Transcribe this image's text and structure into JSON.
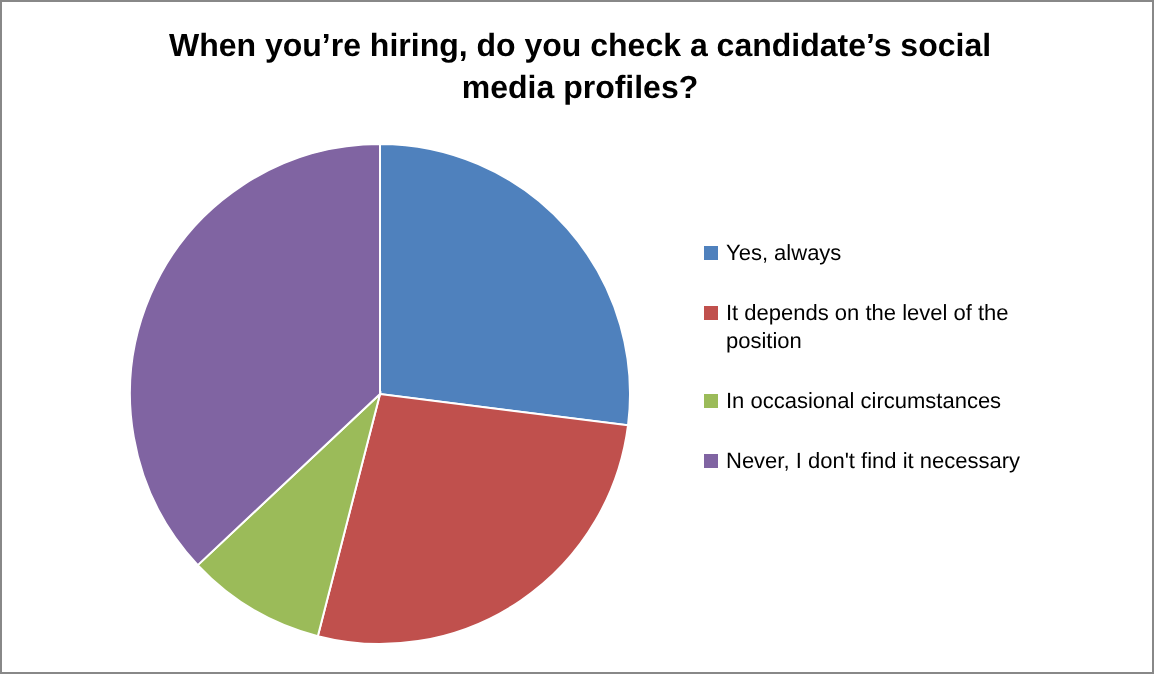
{
  "chart_data": {
    "type": "pie",
    "title": "When you’re hiring, do you check a candidate’s social media profiles?",
    "categories": [
      "Yes, always",
      "It depends on the level of the position",
      "In occasional circumstances",
      "Never, I don't find it necessary"
    ],
    "values": [
      27,
      27,
      9,
      37
    ],
    "colors": [
      "#4f81bd",
      "#c0504d",
      "#9bbb59",
      "#8064a2"
    ],
    "legend": "right"
  }
}
